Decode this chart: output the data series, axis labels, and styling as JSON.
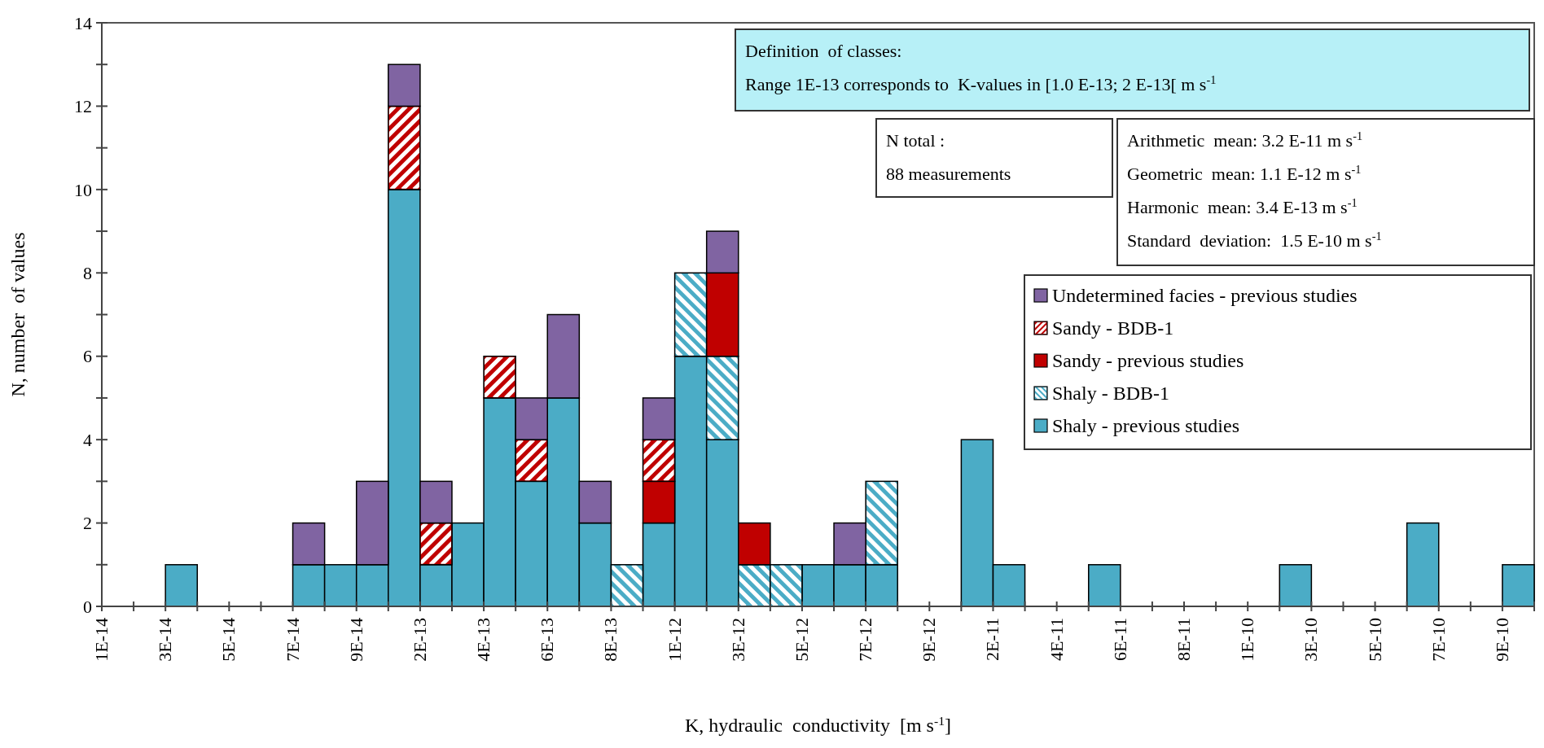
{
  "chart_data": {
    "type": "bar",
    "stacked": true,
    "xlabel": "K, hydraulic  conductivity  [m s$^{-1}$]",
    "ylabel": "N, number  of values",
    "categories": [
      "1E-14",
      null,
      "3E-14",
      null,
      "5E-14",
      null,
      "7E-14",
      null,
      "9E-14",
      null,
      "2E-13",
      null,
      "4E-13",
      null,
      "6E-13",
      null,
      "8E-13",
      null,
      "1E-12",
      null,
      "3E-12",
      null,
      "5E-12",
      null,
      "7E-12",
      null,
      "9E-12",
      null,
      "2E-11",
      null,
      "4E-11",
      null,
      "6E-11",
      null,
      "8E-11",
      null,
      "1E-10",
      null,
      "3E-10",
      null,
      "5E-10",
      null,
      "7E-10",
      null,
      "9E-10"
    ],
    "series": [
      {
        "name": "Shaly - previous studies",
        "color": "#4bacc6",
        "values": [
          0,
          0,
          1,
          0,
          0,
          0,
          1,
          1,
          1,
          10,
          1,
          2,
          5,
          3,
          5,
          2,
          0,
          2,
          6,
          4,
          0,
          0,
          1,
          1,
          1,
          0,
          0,
          4,
          1,
          0,
          0,
          1,
          0,
          0,
          0,
          0,
          0,
          1,
          0,
          0,
          0,
          2,
          0,
          0,
          1
        ]
      },
      {
        "name": "Shaly - BDB-1",
        "color": "#4bacc6",
        "values": [
          0,
          0,
          0,
          0,
          0,
          0,
          0,
          0,
          0,
          0,
          0,
          0,
          0,
          0,
          0,
          0,
          1,
          0,
          2,
          2,
          1,
          1,
          0,
          0,
          2,
          0,
          0,
          0,
          0,
          0,
          0,
          0,
          0,
          0,
          0,
          0,
          0,
          0,
          0,
          0,
          0,
          0,
          0,
          0,
          0
        ]
      },
      {
        "name": "Sandy - previous studies",
        "color": "#c00000",
        "values": [
          0,
          0,
          0,
          0,
          0,
          0,
          0,
          0,
          0,
          0,
          0,
          0,
          0,
          0,
          0,
          0,
          0,
          1,
          0,
          2,
          1,
          0,
          0,
          0,
          0,
          0,
          0,
          0,
          0,
          0,
          0,
          0,
          0,
          0,
          0,
          0,
          0,
          0,
          0,
          0,
          0,
          0,
          0,
          0,
          0
        ]
      },
      {
        "name": "Sandy - BDB-1",
        "color": "#c00000",
        "values": [
          0,
          0,
          0,
          0,
          0,
          0,
          0,
          0,
          0,
          2,
          1,
          0,
          1,
          1,
          0,
          0,
          0,
          1,
          0,
          0,
          0,
          0,
          0,
          0,
          0,
          0,
          0,
          0,
          0,
          0,
          0,
          0,
          0,
          0,
          0,
          0,
          0,
          0,
          0,
          0,
          0,
          0,
          0,
          0,
          0
        ]
      },
      {
        "name": "Undetermined facies - previous studies",
        "color": "#8064a2",
        "values": [
          0,
          0,
          0,
          0,
          0,
          0,
          1,
          0,
          2,
          1,
          1,
          0,
          0,
          1,
          2,
          1,
          0,
          1,
          0,
          1,
          0,
          0,
          0,
          1,
          0,
          0,
          0,
          0,
          0,
          0,
          0,
          0,
          0,
          0,
          0,
          0,
          0,
          0,
          0,
          0,
          0,
          0,
          0,
          0,
          0
        ]
      }
    ],
    "ylim": [
      0,
      14
    ],
    "yticks": [
      0,
      {
        "value": 1,
        "label": null
      },
      2,
      {
        "value": 3,
        "label": null
      },
      4,
      {
        "value": 5,
        "label": null
      },
      6,
      {
        "value": 7,
        "label": null
      },
      8,
      {
        "value": 9,
        "label": null
      },
      10,
      {
        "value": 11,
        "label": null
      },
      12,
      {
        "value": 13,
        "label": null
      },
      14
    ],
    "grid": false,
    "legend": "right",
    "annotations": [
      "Definition  of classes:",
      "Range 1E-13 corresponds to  K-values in [1.0 E-13; 2 E-13[ m s$^{-1}$",
      "N total :",
      "88 measurements",
      "Arithmetic  mean: 3.2 E-11 m s$^{-1}$",
      "Geometric  mean: 1.1 E-12 m s$^{-1}$",
      "Harmonic  mean: 3.4 E-13 m s$^{-1}$",
      "Standard  deviation:  1.5 E-10 m s$^{-1}$"
    ]
  }
}
